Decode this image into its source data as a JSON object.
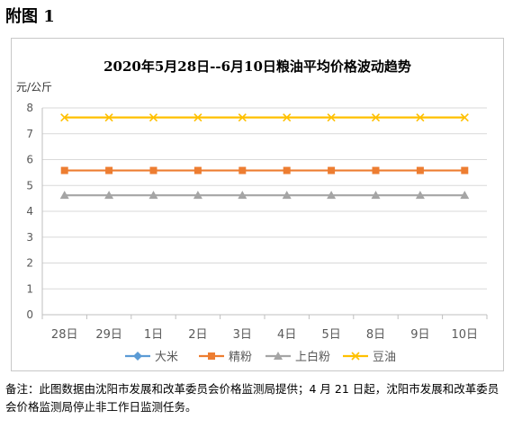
{
  "heading": "附图 1",
  "note": "备注：此图数据由沈阳市发展和改革委员会价格监测局提供；4 月 21 日起，沈阳市发展和改革委员会价格监测局停止非工作日监测任务。",
  "chart_data": {
    "type": "line",
    "title": "2020年5月28日--6月10日粮油平均价格波动趋势",
    "ylabel": "元/公斤",
    "xlabel": "",
    "ylim": [
      0,
      8
    ],
    "yticks": [
      "0",
      "1",
      "2",
      "3",
      "4",
      "5",
      "6",
      "7",
      "8"
    ],
    "categories": [
      "28日",
      "29日",
      "1日",
      "2日",
      "3日",
      "4日",
      "5日",
      "8日",
      "9日",
      "10日"
    ],
    "grid": true,
    "legend": "bottom",
    "series": [
      {
        "name": "大米",
        "color": "#5b9bd5",
        "marker": "diamond",
        "values": [
          null,
          null,
          null,
          null,
          null,
          null,
          null,
          null,
          null,
          null
        ]
      },
      {
        "name": "精粉",
        "color": "#ed7d31",
        "marker": "square",
        "values": [
          5.58,
          5.58,
          5.58,
          5.58,
          5.58,
          5.58,
          5.58,
          5.58,
          5.58,
          5.58
        ]
      },
      {
        "name": "上白粉",
        "color": "#a5a5a5",
        "marker": "triangle",
        "values": [
          4.62,
          4.62,
          4.62,
          4.62,
          4.62,
          4.62,
          4.62,
          4.62,
          4.62,
          4.62
        ]
      },
      {
        "name": "豆油",
        "color": "#ffc000",
        "marker": "x",
        "values": [
          7.63,
          7.63,
          7.63,
          7.63,
          7.63,
          7.63,
          7.63,
          7.63,
          7.63,
          7.63
        ]
      }
    ]
  }
}
